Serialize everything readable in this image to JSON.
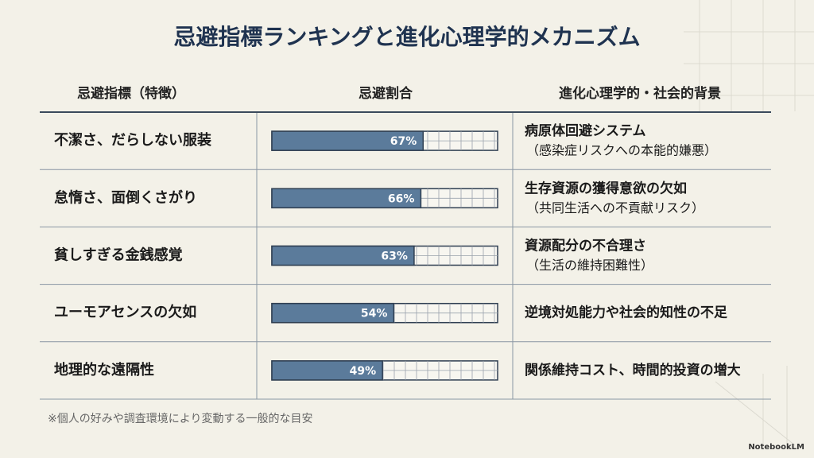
{
  "title": "忌避指標ランキングと進化心理学的メカニズム",
  "table": {
    "headers": [
      "忌避指標（特徴）",
      "忌避割合",
      "進化心理学的・社会的背景"
    ],
    "xlim": [
      0,
      100
    ],
    "rows": [
      {
        "label": "不潔さ、だらしない服装",
        "value": 67,
        "value_label": "67%",
        "background": [
          "病原体回避システム",
          "（感染症リスクへの本能的嫌悪）"
        ]
      },
      {
        "label": "怠惰さ、面倒くさがり",
        "value": 66,
        "value_label": "66%",
        "background": [
          "生存資源の獲得意欲の欠如",
          "（共同生活への不貢献リスク）"
        ]
      },
      {
        "label": "貧しすぎる金銭感覚",
        "value": 63,
        "value_label": "63%",
        "background": [
          "資源配分の不合理さ",
          "（生活の維持困難性）"
        ]
      },
      {
        "label": "ユーモアセンスの欠如",
        "value": 54,
        "value_label": "54%",
        "background": [
          "逆境対処能力や社会的知性の不足"
        ]
      },
      {
        "label": "地理的な遠隔性",
        "value": 49,
        "value_label": "49%",
        "background": [
          "関係維持コスト、時間的投資の増大"
        ]
      }
    ]
  },
  "footnote": "※個人の好みや調査環境により変動する一般的な目安",
  "brand": "NotebookLM"
}
